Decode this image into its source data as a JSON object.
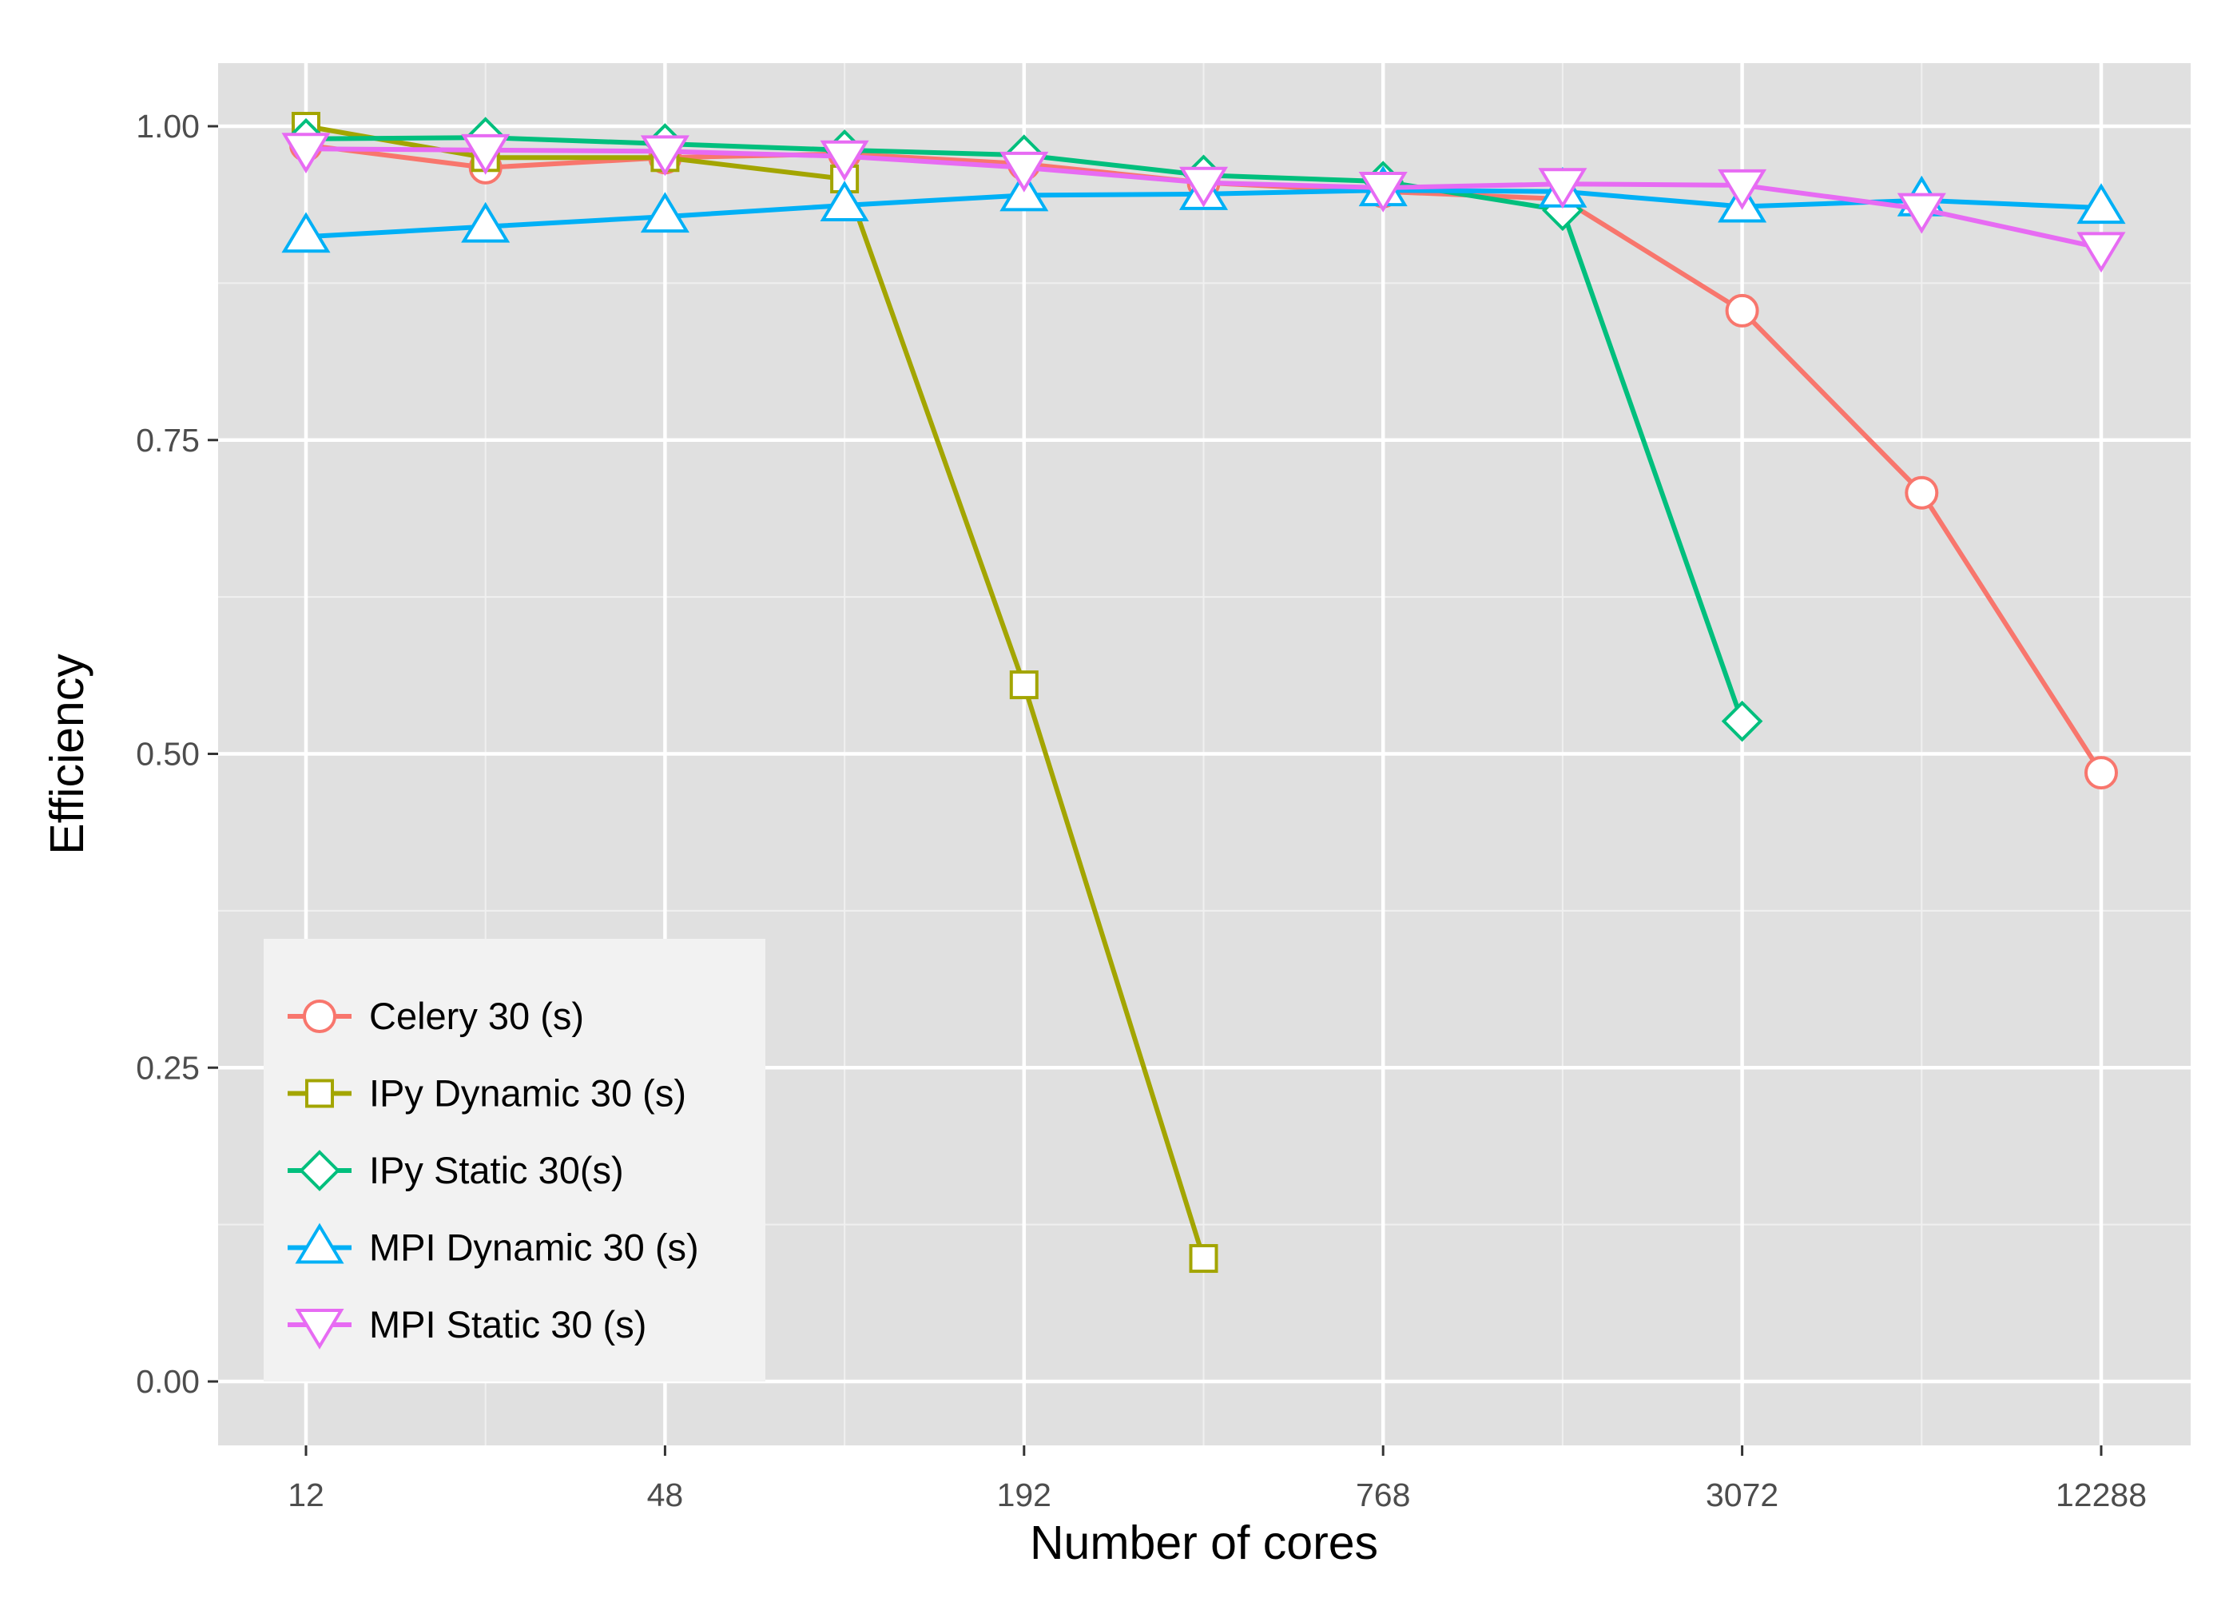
{
  "chart_data": {
    "type": "line",
    "xlabel": "Number of cores",
    "ylabel": "Efficiency",
    "x_scale": "log2",
    "x_tick_labels": [
      "12",
      "48",
      "192",
      "768",
      "3072",
      "12288"
    ],
    "y_tick_labels": [
      "0.00",
      "0.25",
      "0.50",
      "0.75",
      "1.00"
    ],
    "ylim": [
      -0.05,
      1.05
    ],
    "grid": true,
    "legend_position": "bottom-left",
    "x": [
      12,
      24,
      48,
      96,
      192,
      384,
      768,
      1536,
      3072,
      6144,
      12288
    ],
    "series": [
      {
        "name": "Celery 30 (s)",
        "color": "#F8766D",
        "marker": "circle",
        "values": [
          0.985,
          0.967,
          0.975,
          0.978,
          0.97,
          0.955,
          0.948,
          0.942,
          0.853,
          0.708,
          0.485
        ]
      },
      {
        "name": "IPy Dynamic 30 (s)",
        "color": "#A3A500",
        "marker": "square",
        "values": [
          1.0,
          0.975,
          0.975,
          0.958,
          0.555,
          0.098,
          null,
          null,
          null,
          null,
          null
        ]
      },
      {
        "name": "IPy Static 30(s)",
        "color": "#00BF7D",
        "marker": "diamond",
        "values": [
          0.99,
          0.991,
          0.986,
          0.981,
          0.977,
          0.961,
          0.956,
          0.933,
          0.526,
          null,
          null
        ]
      },
      {
        "name": "MPI Dynamic 30 (s)",
        "color": "#00B0F6",
        "marker": "triangle-up",
        "values": [
          0.912,
          0.92,
          0.928,
          0.937,
          0.945,
          0.946,
          0.949,
          0.948,
          0.936,
          0.941,
          0.935
        ]
      },
      {
        "name": "MPI Static 30 (s)",
        "color": "#E76BF3",
        "marker": "triangle-down",
        "values": [
          0.982,
          0.981,
          0.98,
          0.976,
          0.967,
          0.955,
          0.951,
          0.954,
          0.953,
          0.934,
          0.903
        ]
      }
    ]
  }
}
